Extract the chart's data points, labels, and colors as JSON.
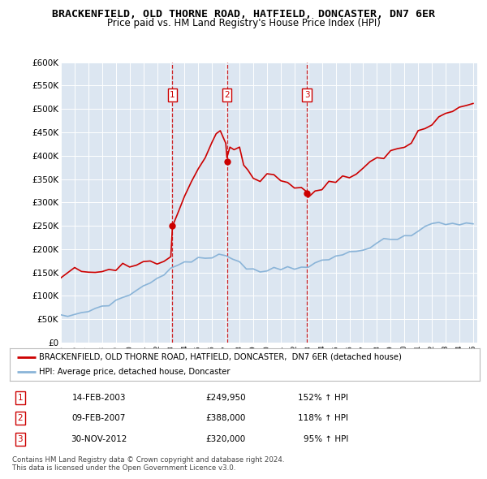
{
  "title": "BRACKENFIELD, OLD THORNE ROAD, HATFIELD, DONCASTER, DN7 6ER",
  "subtitle": "Price paid vs. HM Land Registry's House Price Index (HPI)",
  "bg_color": "#ffffff",
  "plot_bg_color": "#dce6f1",
  "grid_color": "#ffffff",
  "ylim": [
    0,
    600000
  ],
  "yticks": [
    0,
    50000,
    100000,
    150000,
    200000,
    250000,
    300000,
    350000,
    400000,
    450000,
    500000,
    550000,
    600000
  ],
  "hpi_color": "#8ab4d8",
  "price_color": "#cc0000",
  "dashed_line_color": "#cc0000",
  "legend_label_red": "BRACKENFIELD, OLD THORNE ROAD, HATFIELD, DONCASTER,  DN7 6ER (detached house)",
  "legend_label_blue": "HPI: Average price, detached house, Doncaster",
  "table_rows": [
    {
      "num": "1",
      "date": "14-FEB-2003",
      "price": "£249,950",
      "hpi": "152% ↑ HPI"
    },
    {
      "num": "2",
      "date": "09-FEB-2007",
      "price": "£388,000",
      "hpi": "118% ↑ HPI"
    },
    {
      "num": "3",
      "date": "30-NOV-2012",
      "price": "£320,000",
      "hpi": "95% ↑ HPI"
    }
  ],
  "footer": "Contains HM Land Registry data © Crown copyright and database right 2024.\nThis data is licensed under the Open Government Licence v3.0.",
  "sale_points": [
    {
      "year": 2003.12,
      "value": 249950,
      "label": "1"
    },
    {
      "year": 2007.08,
      "value": 388000,
      "label": "2"
    },
    {
      "year": 2012.92,
      "value": 320000,
      "label": "3"
    }
  ],
  "hpi_x": [
    1995.0,
    1995.5,
    1996.0,
    1996.5,
    1997.0,
    1997.5,
    1998.0,
    1998.5,
    1999.0,
    1999.5,
    2000.0,
    2000.5,
    2001.0,
    2001.5,
    2002.0,
    2002.5,
    2003.0,
    2003.5,
    2004.0,
    2004.5,
    2005.0,
    2005.5,
    2006.0,
    2006.5,
    2007.0,
    2007.5,
    2008.0,
    2008.5,
    2009.0,
    2009.5,
    2010.0,
    2010.5,
    2011.0,
    2011.5,
    2012.0,
    2012.5,
    2013.0,
    2013.5,
    2014.0,
    2014.5,
    2015.0,
    2015.5,
    2016.0,
    2016.5,
    2017.0,
    2017.5,
    2018.0,
    2018.5,
    2019.0,
    2019.5,
    2020.0,
    2020.5,
    2021.0,
    2021.5,
    2022.0,
    2022.5,
    2023.0,
    2023.5,
    2024.0,
    2024.5,
    2025.0
  ],
  "hpi_y": [
    55000,
    57000,
    60000,
    63000,
    68000,
    73000,
    78000,
    83000,
    88000,
    95000,
    103000,
    112000,
    120000,
    128000,
    138000,
    148000,
    158000,
    165000,
    172000,
    176000,
    178000,
    180000,
    182000,
    184000,
    186000,
    182000,
    174000,
    163000,
    155000,
    152000,
    155000,
    158000,
    160000,
    161000,
    162000,
    163000,
    164000,
    167000,
    172000,
    178000,
    183000,
    188000,
    193000,
    197000,
    202000,
    207000,
    212000,
    217000,
    220000,
    222000,
    224000,
    228000,
    238000,
    248000,
    255000,
    258000,
    256000,
    254000,
    252000,
    253000,
    255000
  ],
  "price_x": [
    1995.0,
    1995.5,
    1996.0,
    1996.5,
    1997.0,
    1997.5,
    1998.0,
    1998.5,
    1999.0,
    1999.5,
    2000.0,
    2000.5,
    2001.0,
    2001.5,
    2002.0,
    2002.5,
    2003.0,
    2003.12,
    2003.5,
    2004.0,
    2004.5,
    2005.0,
    2005.5,
    2006.0,
    2006.3,
    2006.6,
    2007.0,
    2007.08,
    2007.3,
    2007.6,
    2008.0,
    2008.3,
    2008.6,
    2009.0,
    2009.5,
    2010.0,
    2010.5,
    2011.0,
    2011.5,
    2012.0,
    2012.5,
    2012.92,
    2013.0,
    2013.5,
    2014.0,
    2014.5,
    2015.0,
    2015.5,
    2016.0,
    2016.5,
    2017.0,
    2017.5,
    2018.0,
    2018.5,
    2019.0,
    2019.5,
    2020.0,
    2020.5,
    2021.0,
    2021.5,
    2022.0,
    2022.5,
    2023.0,
    2023.5,
    2024.0,
    2024.5,
    2025.0
  ],
  "price_y": [
    148000,
    150000,
    152000,
    154000,
    155000,
    156000,
    157000,
    158000,
    160000,
    162000,
    163000,
    165000,
    166000,
    167000,
    169000,
    172000,
    180000,
    249950,
    285000,
    310000,
    340000,
    370000,
    400000,
    430000,
    450000,
    455000,
    420000,
    388000,
    415000,
    410000,
    415000,
    380000,
    370000,
    355000,
    345000,
    350000,
    355000,
    348000,
    345000,
    335000,
    330000,
    320000,
    318000,
    322000,
    330000,
    338000,
    342000,
    348000,
    355000,
    362000,
    372000,
    382000,
    393000,
    400000,
    410000,
    415000,
    420000,
    430000,
    445000,
    460000,
    470000,
    480000,
    490000,
    495000,
    500000,
    505000,
    510000
  ]
}
